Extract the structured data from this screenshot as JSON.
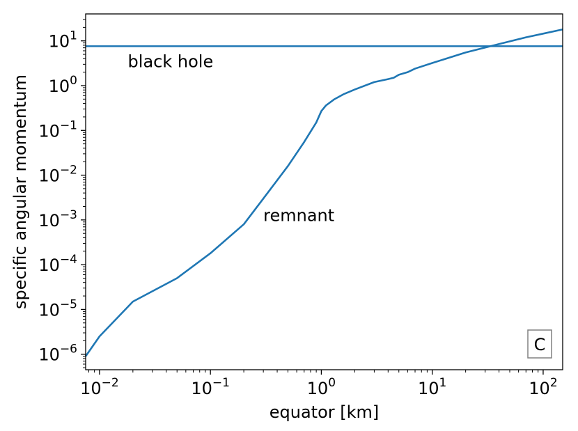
{
  "chart_data": {
    "type": "line",
    "title": "",
    "xlabel": "equator [km]",
    "ylabel": "specific angular momentum",
    "xscale": "log",
    "yscale": "log",
    "xlim": [
      0.0075,
      150
    ],
    "ylim": [
      4.5e-07,
      40
    ],
    "x_ticks": [
      {
        "base": "10",
        "exp": "−2",
        "value": 0.01
      },
      {
        "base": "10",
        "exp": "−1",
        "value": 0.1
      },
      {
        "base": "10",
        "exp": "0",
        "value": 1
      },
      {
        "base": "10",
        "exp": "1",
        "value": 10
      },
      {
        "base": "10",
        "exp": "2",
        "value": 100
      }
    ],
    "y_ticks": [
      {
        "base": "10",
        "exp": "−6",
        "value": 1e-06
      },
      {
        "base": "10",
        "exp": "−5",
        "value": 1e-05
      },
      {
        "base": "10",
        "exp": "−4",
        "value": 0.0001
      },
      {
        "base": "10",
        "exp": "−3",
        "value": 0.001
      },
      {
        "base": "10",
        "exp": "−2",
        "value": 0.01
      },
      {
        "base": "10",
        "exp": "−1",
        "value": 0.1
      },
      {
        "base": "10",
        "exp": "0",
        "value": 1
      },
      {
        "base": "10",
        "exp": "1",
        "value": 10
      }
    ],
    "series": [
      {
        "color": "#1f77b4",
        "x": [
          0.0075,
          0.01,
          0.02,
          0.05,
          0.1,
          0.2,
          0.3,
          0.5,
          0.7,
          0.9,
          1.0,
          1.1,
          1.3,
          1.6,
          2.0,
          3.0,
          4.0,
          4.5,
          5.0,
          6.0,
          7.0,
          10.0,
          20.0,
          40.0,
          70.0,
          100.0,
          150.0
        ],
        "y": [
          9e-07,
          2.5e-06,
          1.5e-05,
          5e-05,
          0.00018,
          0.0008,
          0.003,
          0.016,
          0.055,
          0.15,
          0.27,
          0.36,
          0.49,
          0.65,
          0.82,
          1.2,
          1.4,
          1.5,
          1.75,
          2.0,
          2.4,
          3.2,
          5.5,
          8.5,
          12.0,
          14.5,
          18.0
        ]
      },
      {
        "color": "#1f77b4",
        "x": [
          0.0075,
          150.0
        ],
        "y": [
          7.6,
          7.6
        ]
      }
    ],
    "annotations": [
      {
        "text": "black hole",
        "x": 0.018,
        "y": 2.6
      },
      {
        "text": "remnant",
        "x": 0.3,
        "y": 0.00095
      }
    ],
    "panel_label": "C",
    "grid": false,
    "legend": "none"
  }
}
